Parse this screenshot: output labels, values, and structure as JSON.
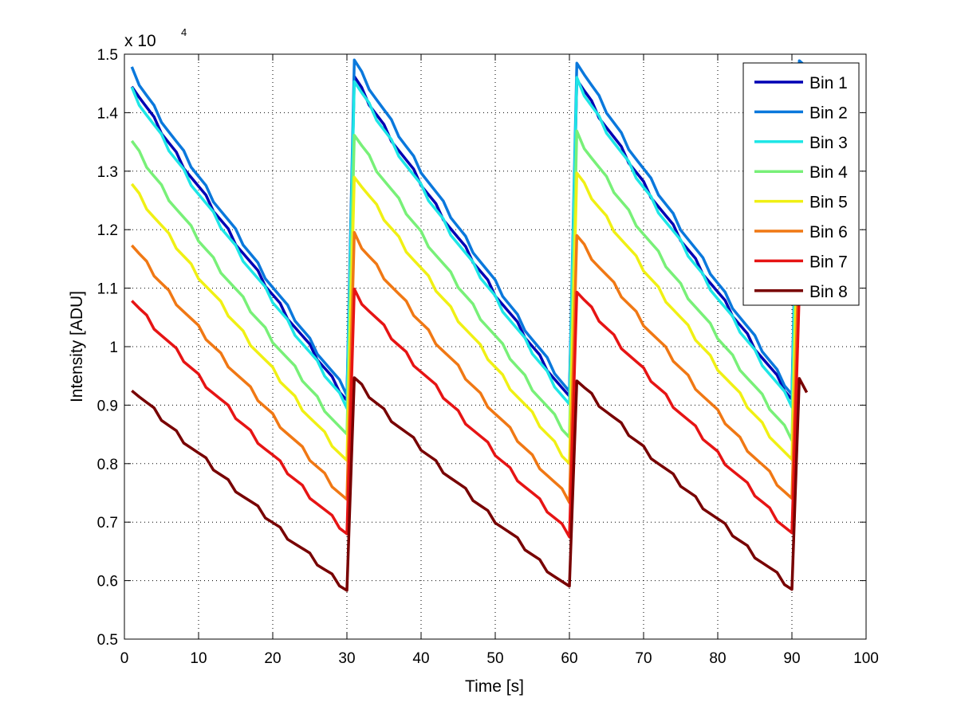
{
  "chart_data": {
    "type": "line",
    "title": "",
    "xlabel": "Time [s]",
    "ylabel": "Intensity [ADU]",
    "xlim": [
      0,
      100
    ],
    "ylim": [
      5000,
      15000
    ],
    "y_exponent_label": "x 10",
    "y_exponent_power": "4",
    "grid": true,
    "legend_position": "top-right",
    "xticks": [
      0,
      10,
      20,
      30,
      40,
      50,
      60,
      70,
      80,
      90,
      100
    ],
    "xtick_labels": [
      "0",
      "10",
      "20",
      "30",
      "40",
      "50",
      "60",
      "70",
      "80",
      "90",
      "100"
    ],
    "yticks": [
      5000,
      6000,
      7000,
      8000,
      9000,
      10000,
      11000,
      12000,
      13000,
      14000,
      15000
    ],
    "ytick_labels": [
      "0.5",
      "0.6",
      "0.7",
      "0.8",
      "0.9",
      "1",
      "1.1",
      "1.2",
      "1.3",
      "1.4",
      "1.5"
    ],
    "x": [
      1,
      2,
      3,
      4,
      5,
      6,
      7,
      8,
      9,
      10,
      11,
      12,
      13,
      14,
      15,
      16,
      17,
      18,
      19,
      20,
      21,
      22,
      23,
      24,
      25,
      26,
      27,
      28,
      29,
      30,
      31,
      32,
      33,
      34,
      35,
      36,
      37,
      38,
      39,
      40,
      41,
      42,
      43,
      44,
      45,
      46,
      47,
      48,
      49,
      50,
      51,
      52,
      53,
      54,
      55,
      56,
      57,
      58,
      59,
      60,
      61,
      62,
      63,
      64,
      65,
      66,
      67,
      68,
      69,
      70,
      71,
      72,
      73,
      74,
      75,
      76,
      77,
      78,
      79,
      80,
      81,
      82,
      83,
      84,
      85,
      86,
      87,
      88,
      89,
      90,
      91,
      92
    ],
    "series": [
      {
        "name": "Bin 1",
        "color": "#0000b4",
        "start": 14500,
        "peak": 14600,
        "trough": 9100,
        "end": 14600
      },
      {
        "name": "Bin 2",
        "color": "#0a78dc",
        "start": 14730,
        "peak": 14900,
        "trough": 9200,
        "end": 14870
      },
      {
        "name": "Bin 3",
        "color": "#1ee6e6",
        "start": 14400,
        "peak": 14550,
        "trough": 9000,
        "end": 14500
      },
      {
        "name": "Bin 4",
        "color": "#78f078",
        "start": 13500,
        "peak": 13650,
        "trough": 8450,
        "end": 13600
      },
      {
        "name": "Bin 5",
        "color": "#f0f014",
        "start": 12780,
        "peak": 12950,
        "trough": 8020,
        "end": 12900
      },
      {
        "name": "Bin 6",
        "color": "#f07814",
        "start": 11750,
        "peak": 11900,
        "trough": 7370,
        "end": 11850
      },
      {
        "name": "Bin 7",
        "color": "#e61414",
        "start": 10820,
        "peak": 10950,
        "trough": 6800,
        "end": 10900
      },
      {
        "name": "Bin 8",
        "color": "#780000",
        "start": 9300,
        "peak": 9450,
        "trough": 5850,
        "end": 9420
      }
    ]
  }
}
